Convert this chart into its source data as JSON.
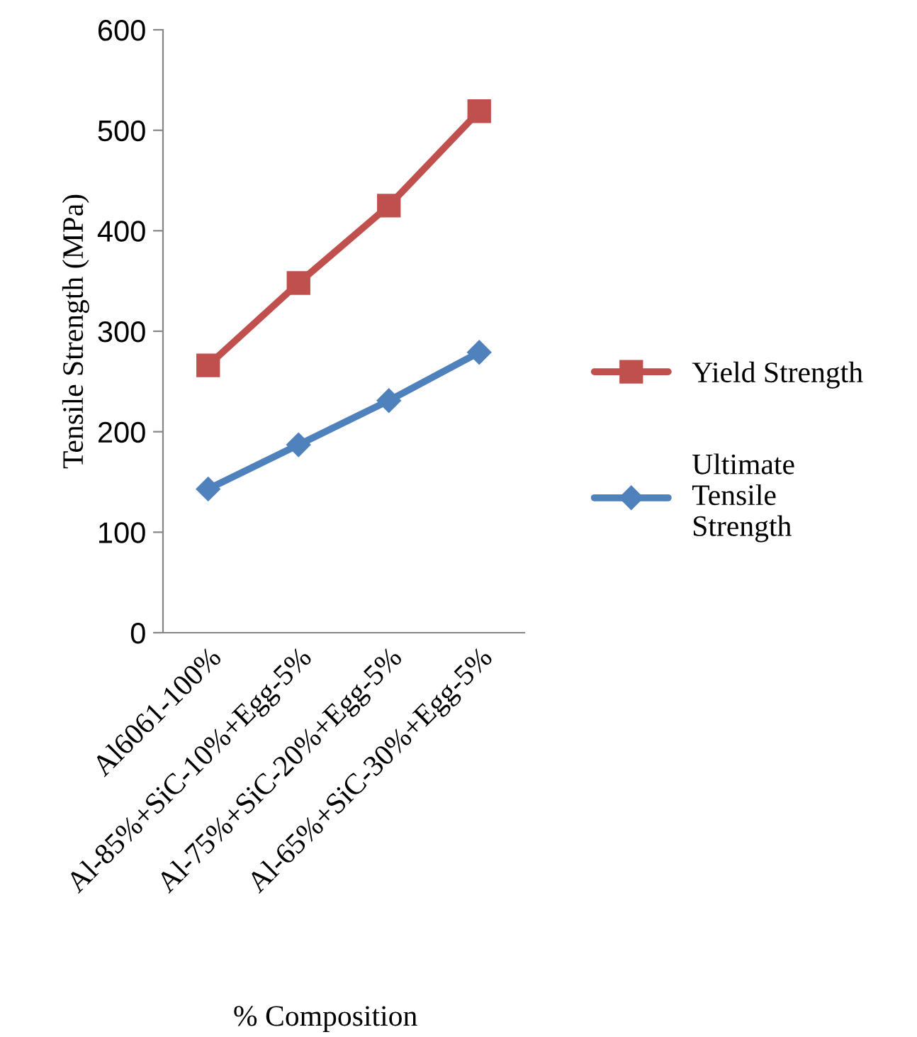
{
  "chart_data": {
    "type": "line",
    "xlabel": "% Composition",
    "ylabel": "Tensile Strength (MPa)",
    "categories": [
      "Al6061-100%",
      "Al-85%+SiC-10%+Egg-5%",
      "Al-75%+SiC-20%+Egg-5%",
      "Al-65%+SiC-30%+Egg-5%"
    ],
    "series": [
      {
        "name": "Yield Strength",
        "color": "#c0504d",
        "marker": "square",
        "values": [
          266,
          348,
          425,
          519
        ]
      },
      {
        "name": "Ultimate\nTensile\nStrength",
        "color": "#4f81bd",
        "marker": "diamond",
        "values": [
          143,
          187,
          231,
          279
        ]
      }
    ],
    "ylim": [
      0,
      600
    ],
    "yticks": [
      0,
      100,
      200,
      300,
      400,
      500,
      600
    ],
    "grid": false,
    "legend": "right",
    "line_style": "solid"
  }
}
